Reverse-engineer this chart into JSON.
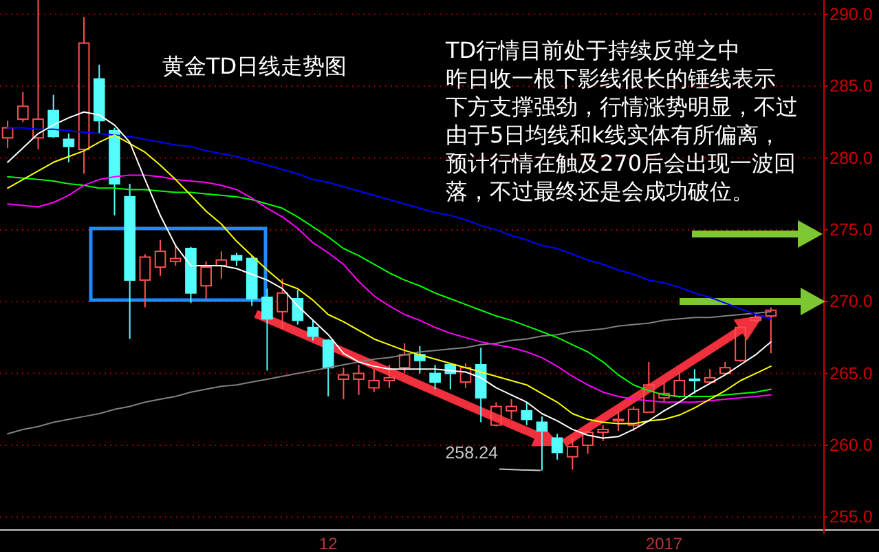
{
  "chart_data": {
    "type": "candlestick",
    "title": "黄金TD日线走势图",
    "categories": [
      null,
      null,
      null,
      null,
      null,
      null,
      null,
      null,
      null,
      null,
      null,
      null,
      null,
      null,
      null,
      null,
      null,
      null,
      null,
      null,
      null,
      "12",
      null,
      null,
      null,
      null,
      null,
      null,
      null,
      null,
      null,
      null,
      null,
      null,
      null,
      null,
      null,
      null,
      null,
      null,
      null,
      null,
      null,
      "2017",
      null,
      null,
      null,
      null,
      null,
      null,
      null
    ],
    "ohlc": [
      [
        281.4,
        282.6,
        280.7,
        282.1
      ],
      [
        282.7,
        284.6,
        282.5,
        283.6
      ],
      [
        281.4,
        291.0,
        280.6,
        282.7
      ],
      [
        283.3,
        284.4,
        281.4,
        281.5
      ],
      [
        281.3,
        281.7,
        279.7,
        280.8
      ],
      [
        280.6,
        289.8,
        278.9,
        288.0
      ],
      [
        285.5,
        286.5,
        281.7,
        282.6
      ],
      [
        281.9,
        282.1,
        276.0,
        278.2
      ],
      [
        277.3,
        278.2,
        267.4,
        271.5
      ],
      [
        271.5,
        273.3,
        269.6,
        273.1
      ],
      [
        272.4,
        274.3,
        271.8,
        273.5
      ],
      [
        272.8,
        274.0,
        272.5,
        273.0
      ],
      [
        273.7,
        273.8,
        269.9,
        270.6
      ],
      [
        271.1,
        272.8,
        270.2,
        272.4
      ],
      [
        272.5,
        273.5,
        271.6,
        272.9
      ],
      [
        273.2,
        273.4,
        272.5,
        272.9
      ],
      [
        273.0,
        273.2,
        269.7,
        270.2
      ],
      [
        270.3,
        270.9,
        265.2,
        268.8
      ],
      [
        269.3,
        271.6,
        268.1,
        270.6
      ],
      [
        270.2,
        270.8,
        268.4,
        268.7
      ],
      [
        268.2,
        268.7,
        267.3,
        267.6
      ],
      [
        267.3,
        267.4,
        263.4,
        265.4
      ],
      [
        264.6,
        265.4,
        263.2,
        264.9
      ],
      [
        264.6,
        265.6,
        263.5,
        265.0
      ],
      [
        264.0,
        265.3,
        263.7,
        264.5
      ],
      [
        264.5,
        265.6,
        264.0,
        264.7
      ],
      [
        265.4,
        267.1,
        265.0,
        266.3
      ],
      [
        266.3,
        266.9,
        265.0,
        265.9
      ],
      [
        265.0,
        265.6,
        263.9,
        264.4
      ],
      [
        265.6,
        265.7,
        263.9,
        265.0
      ],
      [
        264.4,
        265.7,
        264.0,
        265.4
      ],
      [
        265.6,
        266.8,
        261.6,
        263.3
      ],
      [
        261.4,
        263.0,
        261.3,
        262.7
      ],
      [
        262.4,
        263.2,
        261.8,
        262.7
      ],
      [
        262.4,
        263.0,
        261.4,
        261.8
      ],
      [
        261.6,
        262.0,
        258.24,
        261.0
      ],
      [
        260.5,
        260.8,
        259.0,
        259.5
      ],
      [
        259.2,
        260.5,
        258.3,
        259.9
      ],
      [
        260.0,
        261.0,
        259.4,
        260.9
      ],
      [
        260.9,
        261.4,
        260.3,
        261.1
      ],
      [
        261.7,
        262.4,
        261.0,
        261.8
      ],
      [
        261.4,
        262.7,
        261.0,
        262.5
      ],
      [
        262.3,
        265.8,
        262.3,
        264.2
      ],
      [
        263.3,
        264.4,
        263.0,
        263.6
      ],
      [
        263.4,
        265.1,
        263.3,
        264.5
      ],
      [
        264.6,
        265.3,
        263.6,
        264.5
      ],
      [
        264.4,
        265.3,
        264.3,
        264.7
      ],
      [
        265.0,
        265.8,
        264.9,
        265.4
      ],
      [
        265.9,
        268.3,
        265.8,
        268.2
      ],
      [
        268.7,
        269.1,
        268.6,
        268.9
      ],
      [
        269.0,
        269.6,
        266.4,
        269.4
      ]
    ],
    "colors": [
      "#ff5050",
      "#ff5050",
      "#ff5050",
      "#54fcfc",
      "#54fcfc",
      "#ff5050",
      "#54fcfc",
      "#54fcfc",
      "#54fcfc",
      "#ff5050",
      "#ff5050",
      "#ff5050",
      "#54fcfc",
      "#ff5050",
      "#ff5050",
      "#54fcfc",
      "#54fcfc",
      "#54fcfc",
      "#ff5050",
      "#54fcfc",
      "#54fcfc",
      "#54fcfc",
      "#ff5050",
      "#ff5050",
      "#ff5050",
      "#ff5050",
      "#ff5050",
      "#54fcfc",
      "#54fcfc",
      "#54fcfc",
      "#ff5050",
      "#54fcfc",
      "#ff5050",
      "#ff5050",
      "#54fcfc",
      "#54fcfc",
      "#54fcfc",
      "#ff5050",
      "#ff5050",
      "#ff5050",
      "#ff5050",
      "#ff5050",
      "#ff5050",
      "#ff5050",
      "#ff5050",
      "#54fcfc",
      "#ff5050",
      "#ff5050",
      "#ff5050",
      "#ff5050",
      "#ff5050"
    ],
    "series": [
      {
        "type": "line",
        "color": "#808080",
        "values": [
          260.8,
          261.1,
          261.3,
          261.6,
          261.8,
          262.0,
          262.2,
          262.5,
          262.7,
          263.0,
          263.2,
          263.4,
          263.7,
          263.9,
          264.1,
          264.2,
          264.4,
          264.6,
          264.8,
          265.0,
          265.2,
          265.4,
          265.6,
          265.8,
          266.0,
          266.1,
          266.3,
          266.5,
          266.6,
          266.7,
          266.8,
          267.0,
          267.1,
          267.3,
          267.4,
          267.6,
          267.7,
          267.9,
          268.0,
          268.1,
          268.3,
          268.4,
          268.5,
          268.7,
          268.8,
          268.9,
          268.9,
          269.0,
          269.1,
          269.2,
          269.3
        ]
      },
      {
        "type": "line",
        "color": "#0000ff",
        "values": [
          282.1,
          282.1,
          282.0,
          282.0,
          281.9,
          281.8,
          281.7,
          281.6,
          281.5,
          281.3,
          281.1,
          280.9,
          280.8,
          280.5,
          280.3,
          280.1,
          279.8,
          279.5,
          279.2,
          278.9,
          278.5,
          278.3,
          278.0,
          277.7,
          277.4,
          277.1,
          276.8,
          276.5,
          276.2,
          276.0,
          275.7,
          275.3,
          275.0,
          274.6,
          274.3,
          273.9,
          273.7,
          273.3,
          272.9,
          272.6,
          272.2,
          271.9,
          271.5,
          271.3,
          271.0,
          270.6,
          270.3,
          269.9,
          269.5,
          269.1,
          268.8
        ]
      },
      {
        "type": "line",
        "color": "#00ff00",
        "values": [
          278.7,
          278.6,
          278.5,
          278.4,
          278.2,
          278.1,
          277.9,
          277.9,
          277.8,
          277.8,
          277.7,
          277.6,
          277.6,
          277.5,
          277.4,
          277.3,
          277.1,
          276.8,
          276.5,
          275.9,
          275.2,
          274.5,
          273.7,
          273.2,
          272.6,
          272.0,
          271.5,
          271.1,
          270.6,
          270.2,
          269.8,
          269.4,
          269.0,
          268.7,
          268.3,
          267.9,
          267.5,
          267.0,
          266.5,
          265.8,
          264.9,
          264.2,
          263.8,
          263.5,
          263.4,
          263.4,
          263.4,
          263.5,
          263.6,
          263.7,
          263.9
        ]
      },
      {
        "type": "line",
        "color": "#ff00ff",
        "values": [
          276.8,
          276.7,
          276.6,
          276.9,
          277.4,
          278.1,
          278.5,
          278.7,
          278.8,
          278.8,
          278.7,
          278.5,
          278.4,
          278.3,
          278.1,
          277.8,
          277.2,
          276.5,
          275.9,
          275.1,
          274.1,
          273.4,
          272.6,
          271.4,
          270.4,
          269.7,
          269.1,
          268.7,
          268.2,
          267.8,
          267.5,
          267.2,
          267.0,
          266.8,
          266.5,
          266.1,
          265.5,
          264.8,
          264.2,
          263.7,
          263.4,
          263.2,
          263.1,
          263.0,
          263.0,
          263.0,
          263.1,
          263.2,
          263.3,
          263.4,
          263.5
        ]
      },
      {
        "type": "line",
        "color": "#ffff00",
        "values": [
          277.9,
          278.5,
          279.1,
          279.7,
          280.1,
          280.5,
          281.1,
          281.6,
          281.0,
          280.4,
          279.5,
          278.5,
          277.4,
          276.3,
          275.4,
          274.2,
          273.2,
          272.2,
          271.3,
          270.9,
          270.1,
          269.1,
          268.6,
          268.0,
          267.4,
          267.0,
          266.6,
          266.3,
          266.0,
          265.7,
          265.4,
          265.1,
          264.8,
          264.5,
          264.2,
          263.6,
          263.0,
          262.2,
          261.8,
          261.6,
          261.5,
          261.5,
          261.7,
          261.8,
          262.1,
          262.6,
          263.2,
          263.8,
          264.5,
          265.0,
          265.5
        ]
      },
      {
        "type": "line",
        "color": "#ffffff",
        "values": [
          279.7,
          280.7,
          281.7,
          282.3,
          282.8,
          283.2,
          283.0,
          282.3,
          281.1,
          278.5,
          276.0,
          273.9,
          272.5,
          272.5,
          272.5,
          272.3,
          271.9,
          271.5,
          270.9,
          269.7,
          268.7,
          267.7,
          266.4,
          265.8,
          265.5,
          265.3,
          265.3,
          265.3,
          265.3,
          265.2,
          265.1,
          264.7,
          264.0,
          263.5,
          263.0,
          262.2,
          261.7,
          261.1,
          260.7,
          260.5,
          260.6,
          261.1,
          261.7,
          262.4,
          263.0,
          263.7,
          264.3,
          264.9,
          265.6,
          266.3,
          267.2
        ]
      }
    ],
    "ylim": [
      254.1,
      291.0
    ],
    "yticks": [
      {
        "value": 255,
        "label": "255.0"
      },
      {
        "value": 260,
        "label": "260.0"
      },
      {
        "value": 265,
        "label": "265.0"
      },
      {
        "value": 270,
        "label": "270.0"
      },
      {
        "value": 275,
        "label": "275.0"
      },
      {
        "value": 280,
        "label": "280.0"
      },
      {
        "value": 285,
        "label": "285.0"
      },
      {
        "value": 290,
        "label": "290.0"
      }
    ],
    "grid": "y",
    "annotations": [
      "TD行情目前处于持续反弹之中",
      "昨日收一根下影线很长的锤线表示",
      "下方支撑强劲，行情涨势明显，不过由于5日均线和k线实体有所偏离，预计行情在触及270后会出现一波回落，不过最终还是会成功破位。",
      "258.24"
    ]
  }
}
